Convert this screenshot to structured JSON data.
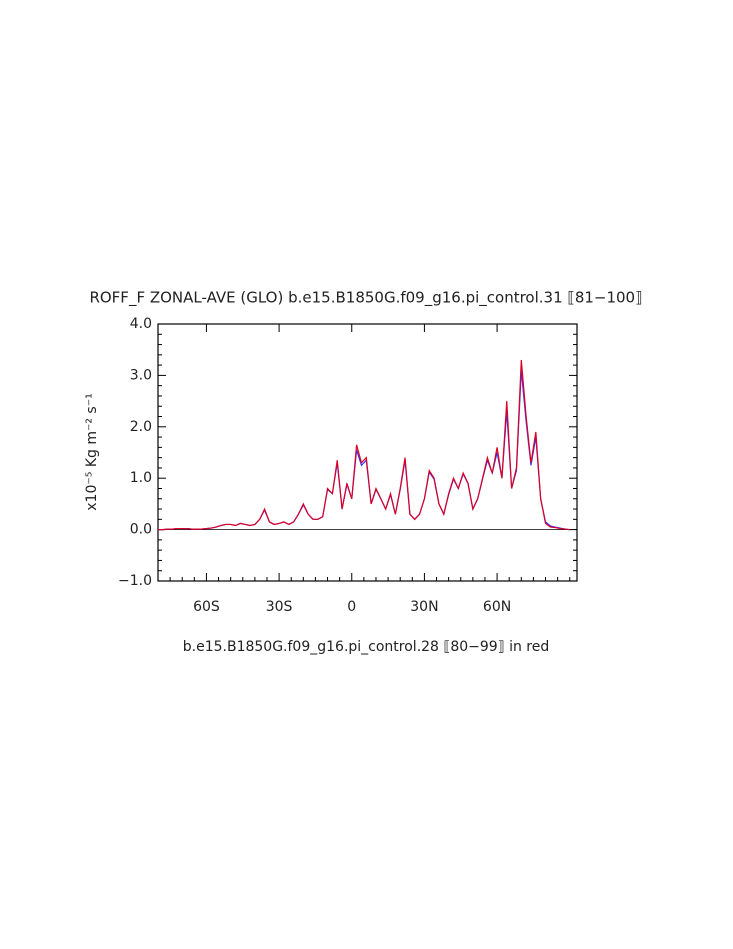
{
  "chart_data": {
    "type": "line",
    "title": "ROFF_F ZONAL-AVE (GLO) b.e15.B1850G.f09_g16.pi_control.31 ⟦81−100⟧",
    "subtitle": "b.e15.B1850G.f09_g16.pi_control.28 ⟦80−99⟧ in red",
    "y_label": "x10⁻⁵ Kg m⁻² s⁻¹",
    "x": [
      -80,
      -78,
      -76,
      -74,
      -72,
      -70,
      -68,
      -66,
      -64,
      -62,
      -60,
      -58,
      -56,
      -54,
      -52,
      -50,
      -48,
      -46,
      -44,
      -42,
      -40,
      -38,
      -36,
      -34,
      -32,
      -30,
      -28,
      -26,
      -24,
      -22,
      -20,
      -18,
      -16,
      -14,
      -12,
      -10,
      -8,
      -6,
      -4,
      -2,
      0,
      2,
      4,
      6,
      8,
      10,
      12,
      14,
      16,
      18,
      20,
      22,
      24,
      26,
      28,
      30,
      32,
      34,
      36,
      38,
      40,
      42,
      44,
      46,
      48,
      50,
      52,
      54,
      56,
      58,
      60,
      62,
      64,
      66,
      68,
      70,
      72,
      74,
      76,
      78,
      80,
      82,
      84,
      86,
      88,
      90
    ],
    "series": [
      {
        "name": "b.e15.B1850G.f09_g16.pi_control.31",
        "color": "#3333ff",
        "values": [
          0,
          0,
          0.01,
          0.01,
          0.02,
          0.02,
          0.02,
          0.01,
          0.01,
          0.01,
          0.02,
          0.03,
          0.05,
          0.08,
          0.1,
          0.1,
          0.08,
          0.12,
          0.1,
          0.08,
          0.1,
          0.2,
          0.38,
          0.15,
          0.1,
          0.12,
          0.15,
          0.1,
          0.15,
          0.3,
          0.48,
          0.3,
          0.2,
          0.2,
          0.25,
          0.78,
          0.7,
          1.3,
          0.4,
          0.88,
          0.6,
          1.55,
          1.25,
          1.35,
          0.5,
          0.78,
          0.6,
          0.4,
          0.68,
          0.3,
          0.78,
          1.35,
          0.3,
          0.2,
          0.3,
          0.6,
          1.12,
          0.98,
          0.5,
          0.3,
          0.68,
          0.98,
          0.8,
          1.08,
          0.9,
          0.4,
          0.6,
          0.98,
          1.35,
          1.1,
          1.5,
          1.0,
          2.3,
          0.8,
          1.15,
          3.1,
          2.1,
          1.25,
          1.8,
          0.6,
          0.15,
          0.07,
          0.05,
          0.03,
          0.01,
          0
        ]
      },
      {
        "name": "b.e15.B1850G.f09_g16.pi_control.28",
        "color": "#dd0022",
        "values": [
          0,
          0,
          0.01,
          0.01,
          0.02,
          0.02,
          0.02,
          0.01,
          0.01,
          0.01,
          0.02,
          0.03,
          0.05,
          0.08,
          0.1,
          0.1,
          0.08,
          0.12,
          0.1,
          0.08,
          0.1,
          0.2,
          0.4,
          0.15,
          0.1,
          0.12,
          0.15,
          0.1,
          0.15,
          0.3,
          0.5,
          0.3,
          0.2,
          0.2,
          0.25,
          0.8,
          0.7,
          1.35,
          0.4,
          0.9,
          0.6,
          1.65,
          1.3,
          1.4,
          0.5,
          0.8,
          0.6,
          0.4,
          0.7,
          0.3,
          0.8,
          1.4,
          0.3,
          0.2,
          0.3,
          0.6,
          1.15,
          1.0,
          0.5,
          0.3,
          0.7,
          1.0,
          0.8,
          1.1,
          0.9,
          0.4,
          0.6,
          1.0,
          1.4,
          1.1,
          1.6,
          1.0,
          2.5,
          0.8,
          1.2,
          3.3,
          2.2,
          1.3,
          1.9,
          0.6,
          0.12,
          0.05,
          0.04,
          0.02,
          0.01,
          0
        ]
      }
    ],
    "xlim": [
      -80,
      93
    ],
    "ylim": [
      -1.0,
      4.0
    ],
    "xticks": [
      {
        "value": -60,
        "label": "60S"
      },
      {
        "value": -30,
        "label": "30S"
      },
      0,
      {
        "value": 30,
        "label": "30N"
      },
      {
        "value": 60,
        "label": "60N"
      }
    ],
    "yticks": [
      {
        "value": -1,
        "label": "−1.0"
      },
      {
        "value": 0,
        "label": "0.0"
      },
      {
        "value": 1,
        "label": "1.0"
      },
      {
        "value": 2,
        "label": "2.0"
      },
      {
        "value": 3,
        "label": "3.0"
      },
      {
        "value": 4,
        "label": "4.0"
      }
    ],
    "xminorticks": [
      -75,
      -70,
      -65,
      -55,
      -50,
      -45,
      -40,
      -35,
      -25,
      -20,
      -15,
      -10,
      -5,
      5,
      10,
      15,
      20,
      25,
      35,
      40,
      45,
      50,
      55,
      65,
      70,
      75,
      80,
      85,
      90
    ],
    "yminorticks": [
      -0.8,
      -0.6,
      -0.4,
      -0.2,
      0.2,
      0.4,
      0.6,
      0.8,
      1.2,
      1.4,
      1.6,
      1.8,
      2.2,
      2.4,
      2.6,
      2.8,
      3.2,
      3.4,
      3.6,
      3.8
    ],
    "reference_line": 0
  }
}
